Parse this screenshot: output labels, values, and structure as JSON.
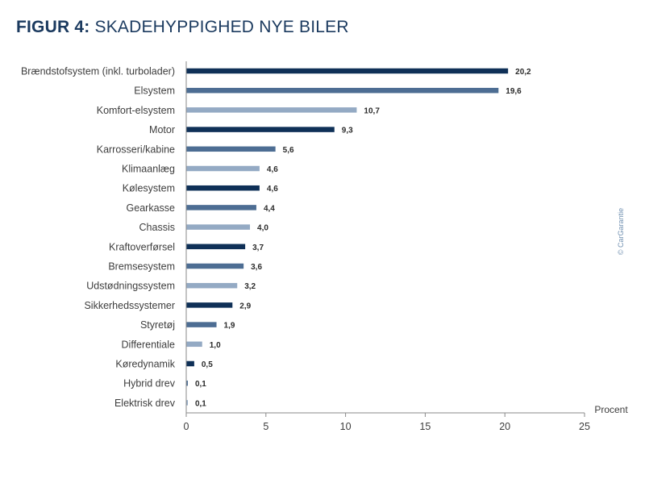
{
  "figure": {
    "prefix": "FIGUR 4:",
    "title": "SKADEHYPPIGHED NYE BILER"
  },
  "copyright": "© CarGarantie",
  "colors": {
    "dark": "#0f3057",
    "medium": "#4d6d93",
    "light": "#94aac4",
    "axis": "#8a8a8a",
    "title": "#1b3a5f"
  },
  "chart_data": {
    "type": "bar",
    "orientation": "horizontal",
    "categories": [
      "Brændstofsystem (inkl. turbolader)",
      "Elsystem",
      "Komfort-elsystem",
      "Motor",
      "Karrosseri/kabine",
      "Klimaanlæg",
      "Kølesystem",
      "Gearkasse",
      "Chassis",
      "Kraftoverførsel",
      "Bremsesystem",
      "Udstødningssystem",
      "Sikkerhedssystemer",
      "Styretøj",
      "Differentiale",
      "Køredynamik",
      "Hybrid drev",
      "Elektrisk drev"
    ],
    "values": [
      20.2,
      19.6,
      10.7,
      9.3,
      5.6,
      4.6,
      4.6,
      4.4,
      4.0,
      3.7,
      3.6,
      3.2,
      2.9,
      1.9,
      1.0,
      0.5,
      0.1,
      0.1
    ],
    "value_labels": [
      "20,2",
      "19,6",
      "10,7",
      "9,3",
      "5,6",
      "4,6",
      "4,6",
      "4,4",
      "4,0",
      "3,7",
      "3,6",
      "3,2",
      "2,9",
      "1,9",
      "1,0",
      "0,5",
      "0,1",
      "0,1"
    ],
    "bar_colors": [
      "dark",
      "medium",
      "light",
      "dark",
      "medium",
      "light",
      "dark",
      "medium",
      "light",
      "dark",
      "medium",
      "light",
      "dark",
      "medium",
      "light",
      "dark",
      "medium",
      "light"
    ],
    "xlabel": "Procent",
    "xlim": [
      0,
      25
    ],
    "xticks": [
      0,
      5,
      10,
      15,
      20,
      25
    ],
    "grid": false,
    "legend": "none"
  }
}
